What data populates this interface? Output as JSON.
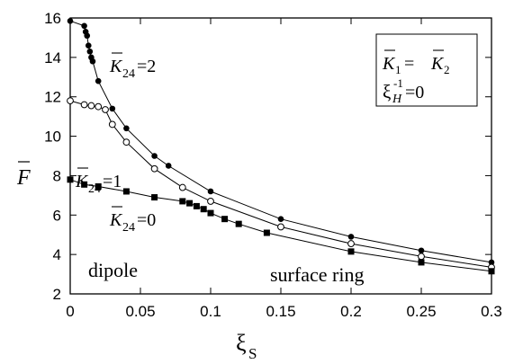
{
  "chart_data": {
    "type": "line",
    "title": "",
    "xlabel": "ξ",
    "xlabel_sub": "S",
    "ylabel": "F",
    "xlim": [
      0,
      0.3
    ],
    "ylim": [
      2,
      16
    ],
    "x_ticks": [
      0,
      0.05,
      0.1,
      0.15,
      0.2,
      0.25,
      0.3
    ],
    "x_tick_labels": [
      "0",
      "0.05",
      "0.1",
      "0.15",
      "0.2",
      "0.25",
      "0.3"
    ],
    "y_ticks": [
      2,
      4,
      6,
      8,
      10,
      12,
      14,
      16
    ],
    "y_tick_labels": [
      "2",
      "4",
      "6",
      "8",
      "10",
      "12",
      "14",
      "16"
    ],
    "grid": false,
    "series": [
      {
        "name": "K24=2",
        "marker": "filled-circle",
        "x": [
          0,
          0.01,
          0.011,
          0.012,
          0.013,
          0.014,
          0.015,
          0.016,
          0.02,
          0.03,
          0.04,
          0.06,
          0.07,
          0.1,
          0.15,
          0.2,
          0.25,
          0.3
        ],
        "y": [
          15.85,
          15.6,
          15.3,
          15.1,
          14.6,
          14.3,
          14.0,
          13.8,
          12.8,
          11.4,
          10.4,
          9.0,
          8.5,
          7.2,
          5.8,
          4.9,
          4.2,
          3.6
        ]
      },
      {
        "name": "K24=1",
        "marker": "open-circle",
        "x": [
          0,
          0.01,
          0.015,
          0.02,
          0.025,
          0.03,
          0.04,
          0.06,
          0.08,
          0.1,
          0.15,
          0.2,
          0.25,
          0.3
        ],
        "y": [
          11.8,
          11.6,
          11.55,
          11.5,
          11.35,
          10.6,
          9.7,
          8.35,
          7.4,
          6.7,
          5.4,
          4.55,
          3.9,
          3.35
        ]
      },
      {
        "name": "K24=0",
        "marker": "filled-square",
        "x": [
          0,
          0.01,
          0.02,
          0.04,
          0.06,
          0.08,
          0.085,
          0.09,
          0.095,
          0.1,
          0.11,
          0.12,
          0.14,
          0.2,
          0.25,
          0.3
        ],
        "y": [
          7.8,
          7.55,
          7.45,
          7.2,
          6.9,
          6.7,
          6.6,
          6.45,
          6.3,
          6.1,
          5.8,
          5.55,
          5.1,
          4.15,
          3.6,
          3.15
        ]
      }
    ],
    "annotations": [
      {
        "text": "dipole"
      },
      {
        "text": "surface ring"
      },
      {
        "text": "K24=2",
        "base": "K",
        "sub": "24",
        "rest": "=2"
      },
      {
        "text": "K24=1",
        "base": "K",
        "sub": "24",
        "rest": "=1"
      },
      {
        "text": "K24=0",
        "base": "K",
        "sub": "24",
        "rest": "=0"
      }
    ],
    "inset_box": {
      "line1": {
        "left": "K",
        "left_sub": "1",
        "eq": " = ",
        "right": "K",
        "right_sub": "2"
      },
      "line2": {
        "base": "ξ",
        "sup": "-1",
        "sub": "H",
        "rest": "=0"
      }
    }
  }
}
